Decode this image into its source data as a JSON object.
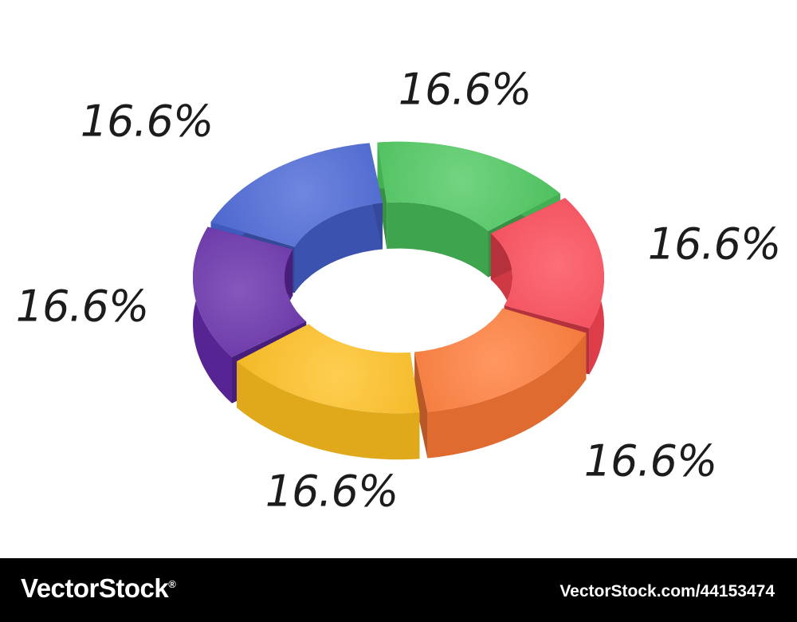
{
  "chart_data": {
    "type": "pie",
    "style": "3d-donut",
    "title": "",
    "slices": [
      {
        "label": "16.6%",
        "value": 16.6,
        "color": "#4cc85e"
      },
      {
        "label": "16.6%",
        "value": 16.6,
        "color": "#fb4553"
      },
      {
        "label": "16.6%",
        "value": 16.6,
        "color": "#ff7a36"
      },
      {
        "label": "16.6%",
        "value": 16.6,
        "color": "#ffc020"
      },
      {
        "label": "16.6%",
        "value": 16.6,
        "color": "#6329a8"
      },
      {
        "label": "16.6%",
        "value": 16.6,
        "color": "#4865d6"
      }
    ]
  },
  "footer": {
    "brand": "VectorStock",
    "brand_mark": "®",
    "image_id": "VectorStock.com/44153474"
  }
}
